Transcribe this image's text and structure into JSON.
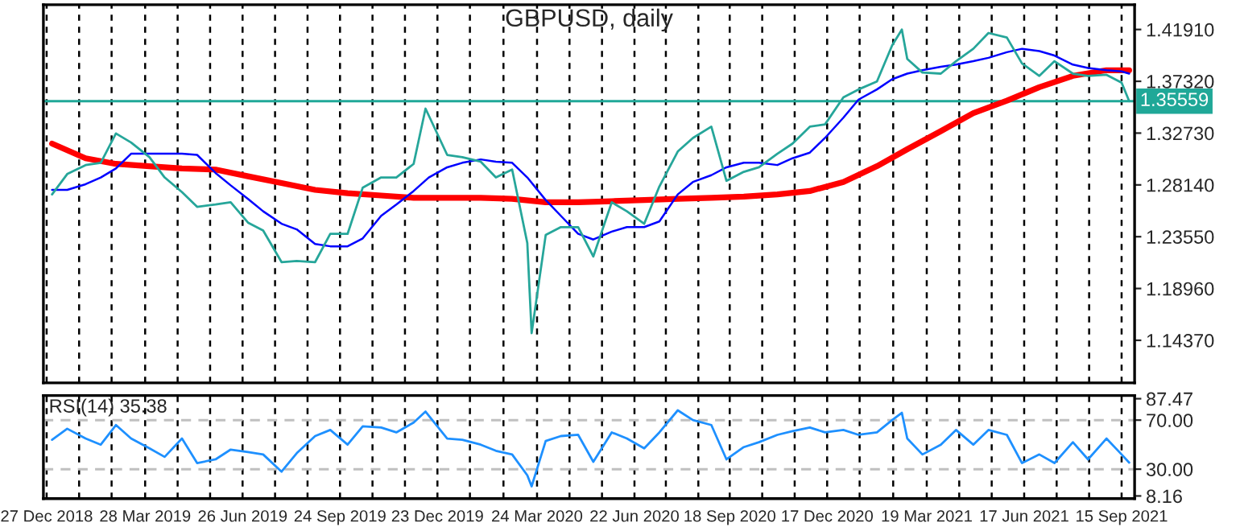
{
  "chart_data": [
    {
      "type": "line",
      "title": "GBPUSD, daily",
      "tick_labels": "y",
      "grid": "x",
      "xlim": [
        "2018-12-24",
        "2021-09-27"
      ],
      "xticks": [
        {
          "value": "2018-12-27",
          "label": null
        },
        {
          "value": "2019-01-26",
          "label": null
        },
        {
          "value": "2019-02-25",
          "label": null
        },
        {
          "value": "2019-03-28",
          "label": null
        },
        {
          "value": "2019-04-27",
          "label": null
        },
        {
          "value": "2019-05-27",
          "label": null
        },
        {
          "value": "2019-06-26",
          "label": null
        },
        {
          "value": "2019-07-26",
          "label": null
        },
        {
          "value": "2019-08-25",
          "label": null
        },
        {
          "value": "2019-09-24",
          "label": null
        },
        {
          "value": "2019-10-24",
          "label": null
        },
        {
          "value": "2019-11-23",
          "label": null
        },
        {
          "value": "2019-12-23",
          "label": null
        },
        {
          "value": "2020-01-22",
          "label": null
        },
        {
          "value": "2020-02-22",
          "label": null
        },
        {
          "value": "2020-03-24",
          "label": null
        },
        {
          "value": "2020-04-23",
          "label": null
        },
        {
          "value": "2020-05-23",
          "label": null
        },
        {
          "value": "2020-06-22",
          "label": null
        },
        {
          "value": "2020-07-21",
          "label": null
        },
        {
          "value": "2020-08-20",
          "label": null
        },
        {
          "value": "2020-09-18",
          "label": null
        },
        {
          "value": "2020-10-18",
          "label": null
        },
        {
          "value": "2020-11-17",
          "label": null
        },
        {
          "value": "2020-12-17",
          "label": null
        },
        {
          "value": "2021-01-16",
          "label": null
        },
        {
          "value": "2021-02-16",
          "label": null
        },
        {
          "value": "2021-03-19",
          "label": null
        },
        {
          "value": "2021-04-18",
          "label": null
        },
        {
          "value": "2021-05-18",
          "label": null
        },
        {
          "value": "2021-06-17",
          "label": null
        },
        {
          "value": "2021-07-17",
          "label": null
        },
        {
          "value": "2021-08-16",
          "label": null
        },
        {
          "value": "2021-09-15",
          "label": null
        }
      ],
      "ylim": [
        1.106,
        1.441
      ],
      "yticks": [
        {
          "value": 1.1437,
          "label": "1.14370"
        },
        {
          "value": 1.1896,
          "label": "1.18960"
        },
        {
          "value": 1.2355,
          "label": "1.23550"
        },
        {
          "value": 1.2814,
          "label": "1.28140"
        },
        {
          "value": 1.3273,
          "label": "1.32730"
        },
        {
          "value": 1.3732,
          "label": "1.37320"
        },
        {
          "value": 1.4191,
          "label": "1.41910"
        }
      ],
      "ref_lines": [
        {
          "axis": "y",
          "value": 1.35559,
          "label": "1.35559",
          "color": "#20a898",
          "line_style": "solid"
        }
      ],
      "series": [
        {
          "color": "#26a69a",
          "x": [
            "2019-01-01",
            "2019-01-15",
            "2019-02-01",
            "2019-02-15",
            "2019-03-01",
            "2019-03-15",
            "2019-04-01",
            "2019-04-15",
            "2019-05-01",
            "2019-05-15",
            "2019-06-01",
            "2019-06-15",
            "2019-07-01",
            "2019-07-15",
            "2019-08-01",
            "2019-08-15",
            "2019-09-01",
            "2019-09-15",
            "2019-10-01",
            "2019-10-15",
            "2019-11-01",
            "2019-11-15",
            "2019-12-01",
            "2019-12-12",
            "2020-01-01",
            "2020-01-15",
            "2020-02-01",
            "2020-02-15",
            "2020-03-01",
            "2020-03-15",
            "2020-03-19",
            "2020-04-01",
            "2020-04-15",
            "2020-05-01",
            "2020-05-15",
            "2020-06-01",
            "2020-06-15",
            "2020-07-01",
            "2020-07-15",
            "2020-08-01",
            "2020-08-15",
            "2020-09-01",
            "2020-09-15",
            "2020-10-01",
            "2020-10-15",
            "2020-11-01",
            "2020-11-15",
            "2020-12-01",
            "2020-12-15",
            "2021-01-01",
            "2021-01-15",
            "2021-02-01",
            "2021-02-15",
            "2021-02-24",
            "2021-03-01",
            "2021-03-15",
            "2021-04-01",
            "2021-04-15",
            "2021-05-01",
            "2021-05-15",
            "2021-06-01",
            "2021-06-15",
            "2021-07-01",
            "2021-07-15",
            "2021-08-01",
            "2021-08-15",
            "2021-09-01",
            "2021-09-15",
            "2021-09-22"
          ],
          "values": [
            1.273,
            1.291,
            1.299,
            1.301,
            1.327,
            1.319,
            1.306,
            1.288,
            1.275,
            1.262,
            1.264,
            1.266,
            1.248,
            1.241,
            1.213,
            1.214,
            1.213,
            1.238,
            1.238,
            1.279,
            1.288,
            1.288,
            1.3,
            1.349,
            1.308,
            1.306,
            1.302,
            1.288,
            1.295,
            1.23,
            1.15,
            1.237,
            1.244,
            1.244,
            1.218,
            1.266,
            1.258,
            1.247,
            1.28,
            1.311,
            1.323,
            1.333,
            1.285,
            1.293,
            1.297,
            1.309,
            1.318,
            1.333,
            1.335,
            1.359,
            1.366,
            1.373,
            1.405,
            1.419,
            1.393,
            1.381,
            1.38,
            1.391,
            1.402,
            1.416,
            1.412,
            1.389,
            1.378,
            1.391,
            1.38,
            1.378,
            1.379,
            1.372,
            1.35559
          ]
        },
        {
          "color": "#0000ff",
          "x": [
            "2019-01-01",
            "2019-01-15",
            "2019-02-01",
            "2019-02-15",
            "2019-03-01",
            "2019-03-15",
            "2019-04-01",
            "2019-04-15",
            "2019-05-01",
            "2019-05-15",
            "2019-06-01",
            "2019-06-15",
            "2019-07-01",
            "2019-07-15",
            "2019-08-01",
            "2019-08-15",
            "2019-09-01",
            "2019-09-15",
            "2019-10-01",
            "2019-10-15",
            "2019-11-01",
            "2019-11-15",
            "2019-12-01",
            "2019-12-15",
            "2020-01-01",
            "2020-01-15",
            "2020-02-01",
            "2020-02-15",
            "2020-03-01",
            "2020-03-15",
            "2020-04-01",
            "2020-04-15",
            "2020-05-01",
            "2020-05-15",
            "2020-06-01",
            "2020-06-15",
            "2020-07-01",
            "2020-07-15",
            "2020-08-01",
            "2020-08-15",
            "2020-09-01",
            "2020-09-15",
            "2020-10-01",
            "2020-10-15",
            "2020-11-01",
            "2020-11-15",
            "2020-12-01",
            "2020-12-15",
            "2021-01-01",
            "2021-01-15",
            "2021-02-01",
            "2021-02-15",
            "2021-03-01",
            "2021-03-15",
            "2021-04-01",
            "2021-04-15",
            "2021-05-01",
            "2021-05-15",
            "2021-06-01",
            "2021-06-15",
            "2021-07-01",
            "2021-07-15",
            "2021-08-01",
            "2021-08-15",
            "2021-09-01",
            "2021-09-15",
            "2021-09-22"
          ],
          "values": [
            1.277,
            1.277,
            1.282,
            1.288,
            1.296,
            1.309,
            1.309,
            1.309,
            1.309,
            1.308,
            1.292,
            1.281,
            1.269,
            1.258,
            1.247,
            1.242,
            1.229,
            1.227,
            1.227,
            1.234,
            1.254,
            1.264,
            1.276,
            1.288,
            1.297,
            1.301,
            1.304,
            1.302,
            1.301,
            1.288,
            1.268,
            1.254,
            1.238,
            1.233,
            1.24,
            1.244,
            1.244,
            1.249,
            1.273,
            1.284,
            1.29,
            1.297,
            1.301,
            1.301,
            1.299,
            1.305,
            1.31,
            1.323,
            1.341,
            1.357,
            1.366,
            1.375,
            1.38,
            1.383,
            1.386,
            1.388,
            1.391,
            1.394,
            1.399,
            1.402,
            1.4,
            1.396,
            1.388,
            1.385,
            1.383,
            1.382,
            1.38
          ]
        },
        {
          "color": "#ff0000",
          "x": [
            "2019-01-01",
            "2019-02-01",
            "2019-03-01",
            "2019-04-01",
            "2019-05-01",
            "2019-06-01",
            "2019-07-01",
            "2019-08-01",
            "2019-09-01",
            "2019-10-01",
            "2019-11-01",
            "2019-12-01",
            "2020-01-01",
            "2020-02-01",
            "2020-03-01",
            "2020-04-01",
            "2020-05-01",
            "2020-06-01",
            "2020-07-01",
            "2020-08-01",
            "2020-09-01",
            "2020-10-01",
            "2020-11-01",
            "2020-12-01",
            "2021-01-01",
            "2021-02-01",
            "2021-03-01",
            "2021-04-01",
            "2021-05-01",
            "2021-06-01",
            "2021-07-01",
            "2021-08-01",
            "2021-09-01",
            "2021-09-22"
          ],
          "values": [
            1.318,
            1.305,
            1.3,
            1.298,
            1.296,
            1.295,
            1.289,
            1.283,
            1.277,
            1.274,
            1.272,
            1.27,
            1.27,
            1.27,
            1.269,
            1.266,
            1.266,
            1.267,
            1.268,
            1.269,
            1.27,
            1.271,
            1.273,
            1.276,
            1.284,
            1.298,
            1.313,
            1.329,
            1.345,
            1.356,
            1.368,
            1.378,
            1.383,
            1.383
          ]
        }
      ]
    },
    {
      "type": "line",
      "title": "RSI(14) 35.38",
      "grid": "x",
      "xlim": [
        "2018-12-24",
        "2021-09-27"
      ],
      "xticks": [
        {
          "value": "2018-12-27",
          "label": "27 Dec 2018"
        },
        {
          "value": "2019-01-26",
          "label": null
        },
        {
          "value": "2019-02-25",
          "label": null
        },
        {
          "value": "2019-03-28",
          "label": "28 Mar 2019"
        },
        {
          "value": "2019-04-27",
          "label": null
        },
        {
          "value": "2019-05-27",
          "label": null
        },
        {
          "value": "2019-06-26",
          "label": "26 Jun 2019"
        },
        {
          "value": "2019-07-26",
          "label": null
        },
        {
          "value": "2019-08-25",
          "label": null
        },
        {
          "value": "2019-09-24",
          "label": "24 Sep 2019"
        },
        {
          "value": "2019-10-24",
          "label": null
        },
        {
          "value": "2019-11-23",
          "label": null
        },
        {
          "value": "2019-12-23",
          "label": "23 Dec 2019"
        },
        {
          "value": "2020-01-22",
          "label": null
        },
        {
          "value": "2020-02-22",
          "label": null
        },
        {
          "value": "2020-03-24",
          "label": "24 Mar 2020"
        },
        {
          "value": "2020-04-23",
          "label": null
        },
        {
          "value": "2020-05-23",
          "label": null
        },
        {
          "value": "2020-06-22",
          "label": "22 Jun 2020"
        },
        {
          "value": "2020-07-21",
          "label": null
        },
        {
          "value": "2020-08-20",
          "label": null
        },
        {
          "value": "2020-09-18",
          "label": "18 Sep 2020"
        },
        {
          "value": "2020-10-18",
          "label": null
        },
        {
          "value": "2020-11-17",
          "label": null
        },
        {
          "value": "2020-12-17",
          "label": "17 Dec 2020"
        },
        {
          "value": "2021-01-16",
          "label": null
        },
        {
          "value": "2021-02-16",
          "label": null
        },
        {
          "value": "2021-03-19",
          "label": "19 Mar 2021"
        },
        {
          "value": "2021-04-18",
          "label": null
        },
        {
          "value": "2021-05-18",
          "label": null
        },
        {
          "value": "2021-06-17",
          "label": "17 Jun 2021"
        },
        {
          "value": "2021-07-17",
          "label": null
        },
        {
          "value": "2021-08-16",
          "label": null
        },
        {
          "value": "2021-09-15",
          "label": "15 Sep 2021"
        }
      ],
      "ylim": [
        6,
        90
      ],
      "yticks": [
        {
          "value": 8.16,
          "label": "8.16"
        },
        {
          "value": 30,
          "label": "30.00"
        },
        {
          "value": 70,
          "label": "70.00"
        },
        {
          "value": 87.47,
          "label": "87.47"
        }
      ],
      "ref_lines": [
        {
          "axis": "y",
          "value": 70,
          "color": "#c0c0c0",
          "line_style": "dashed"
        },
        {
          "axis": "y",
          "value": 30,
          "color": "#c0c0c0",
          "line_style": "dashed"
        }
      ],
      "series": [
        {
          "color": "#1e90ff",
          "x": [
            "2019-01-01",
            "2019-01-15",
            "2019-02-01",
            "2019-02-15",
            "2019-03-01",
            "2019-03-15",
            "2019-04-01",
            "2019-04-15",
            "2019-05-01",
            "2019-05-15",
            "2019-06-01",
            "2019-06-15",
            "2019-07-01",
            "2019-07-15",
            "2019-08-01",
            "2019-08-15",
            "2019-09-01",
            "2019-09-15",
            "2019-10-01",
            "2019-10-15",
            "2019-11-01",
            "2019-11-15",
            "2019-12-01",
            "2019-12-12",
            "2020-01-01",
            "2020-01-15",
            "2020-02-01",
            "2020-02-15",
            "2020-03-01",
            "2020-03-15",
            "2020-03-19",
            "2020-04-01",
            "2020-04-15",
            "2020-05-01",
            "2020-05-15",
            "2020-06-01",
            "2020-06-15",
            "2020-07-01",
            "2020-07-15",
            "2020-08-01",
            "2020-08-15",
            "2020-09-01",
            "2020-09-15",
            "2020-10-01",
            "2020-10-15",
            "2020-11-01",
            "2020-11-15",
            "2020-12-01",
            "2020-12-15",
            "2021-01-01",
            "2021-01-15",
            "2021-02-01",
            "2021-02-15",
            "2021-02-24",
            "2021-03-01",
            "2021-03-15",
            "2021-04-01",
            "2021-04-15",
            "2021-05-01",
            "2021-05-15",
            "2021-06-01",
            "2021-06-15",
            "2021-07-01",
            "2021-07-15",
            "2021-08-01",
            "2021-08-15",
            "2021-09-01",
            "2021-09-15",
            "2021-09-22"
          ],
          "values": [
            54,
            63,
            55,
            50,
            66,
            55,
            47,
            40,
            55,
            35,
            38,
            46,
            44,
            42,
            28,
            43,
            57,
            62,
            50,
            65,
            64,
            60,
            68,
            77,
            55,
            54,
            50,
            45,
            42,
            25,
            16,
            53,
            57,
            58,
            36,
            60,
            55,
            47,
            60,
            78,
            70,
            66,
            38,
            48,
            52,
            58,
            61,
            64,
            60,
            62,
            58,
            60,
            70,
            76,
            55,
            42,
            50,
            62,
            50,
            62,
            58,
            35,
            42,
            35,
            52,
            38,
            55,
            42,
            35.38
          ]
        }
      ]
    }
  ]
}
